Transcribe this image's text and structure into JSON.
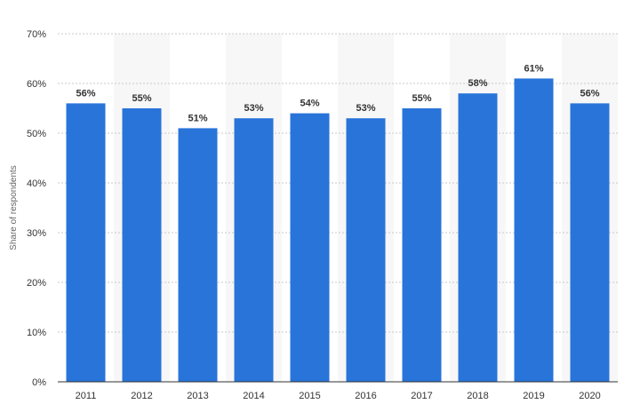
{
  "chart_data": {
    "type": "bar",
    "title": "",
    "xlabel": "",
    "ylabel": "Share of respondents",
    "categories": [
      "2011",
      "2012",
      "2013",
      "2014",
      "2015",
      "2016",
      "2017",
      "2018",
      "2019",
      "2020"
    ],
    "values": [
      56,
      55,
      51,
      53,
      54,
      53,
      55,
      58,
      61,
      56
    ],
    "value_labels": [
      "56%",
      "55%",
      "51%",
      "53%",
      "54%",
      "53%",
      "55%",
      "58%",
      "61%",
      "56%"
    ],
    "y_ticks": [
      0,
      10,
      20,
      30,
      40,
      50,
      60,
      70
    ],
    "y_tick_labels": [
      "0%",
      "10%",
      "20%",
      "30%",
      "40%",
      "50%",
      "60%",
      "70%"
    ],
    "ylim": [
      0,
      70
    ],
    "grid": true,
    "bar_color": "#2874d9",
    "alt_band_color": "#f7f7f7"
  }
}
